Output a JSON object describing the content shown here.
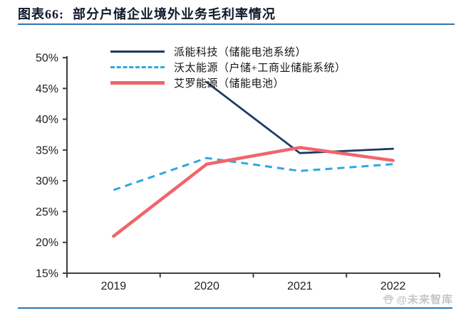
{
  "header": {
    "figure_label": "图表66:",
    "title": "部分户储企业境外业务毛利率情况"
  },
  "chart_data": {
    "type": "line",
    "title": "部分户储企业境外业务毛利率情况",
    "categories": [
      "2019",
      "2020",
      "2021",
      "2022"
    ],
    "series": [
      {
        "key": "paineng",
        "name": "派能科技（储能电池系统）",
        "values": [
          null,
          46.0,
          34.5,
          35.2
        ],
        "color": "#1C3864",
        "line_style": "solid",
        "width": 2.75
      },
      {
        "key": "wotai",
        "name": "沃太能源（户储+工商业储能系统）",
        "values": [
          28.5,
          33.7,
          31.6,
          32.7
        ],
        "color": "#2FA8E1",
        "line_style": "dashed",
        "width": 3
      },
      {
        "key": "ailuo",
        "name": "艾罗能源（储能电池）",
        "values": [
          21.0,
          32.7,
          35.4,
          33.3
        ],
        "color": "#F0656C",
        "line_style": "solid",
        "width": 4.5
      }
    ],
    "xlabel": "",
    "ylabel": "",
    "ylim": [
      15,
      50
    ],
    "ytick_step": 5,
    "ytick_labels": [
      "50%",
      "45%",
      "40%",
      "35%",
      "30%",
      "25%",
      "20%",
      "15%"
    ],
    "grid": false,
    "legend_position": "top-inside-left"
  },
  "watermark": {
    "icon": "paw-icon",
    "text": "@未来智库"
  },
  "colors": {
    "accent_rule": "#2E74B5",
    "axis": "#3F3F3F",
    "tick_label": "#1F1F1F",
    "title_text": "#10182B",
    "watermark": "#C3C6C9"
  }
}
